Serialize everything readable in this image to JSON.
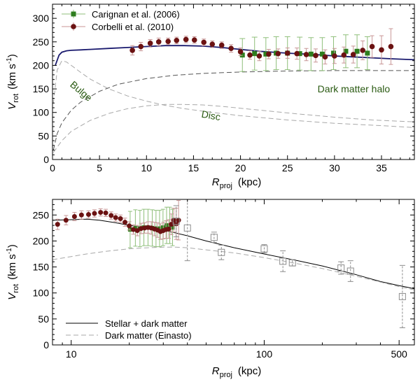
{
  "colors": {
    "total": "#1a1a6e",
    "total_bottom": "#000000",
    "components": "#a8a8a8",
    "carignan": "#2e7d1e",
    "carignan_err": "#8fbf7a",
    "corbelli": "#6b1212",
    "corbelli_err": "#c89696",
    "outer": "#8c8c8c",
    "annotation": "#2a5a12"
  },
  "chart_data": [
    {
      "type": "line",
      "id": "top",
      "xlabel": {
        "main": "R",
        "sub": "proj",
        "unit": "(kpc)"
      },
      "ylabel": {
        "main": "V",
        "sub": "rot",
        "unit_pre": "(km s",
        "unit_exp": "-1",
        "unit_post": ")"
      },
      "xlim": [
        0,
        38.5
      ],
      "ylim": [
        0,
        330
      ],
      "xticks": [
        0,
        5,
        10,
        15,
        20,
        25,
        30,
        35
      ],
      "yticks": [
        0,
        50,
        100,
        150,
        200,
        250,
        300
      ],
      "legend": [
        {
          "label": "Carignan et al. (2006)",
          "marker": "square"
        },
        {
          "label": "Corbelli et al. (2010)",
          "marker": "circle"
        }
      ],
      "annotations": [
        {
          "text": "Bulge",
          "x": 1.8,
          "y": 157,
          "rotate": 40
        },
        {
          "text": "Disc",
          "x": 15.8,
          "y": 90,
          "rotate": 10
        },
        {
          "text": "Dark matter halo",
          "x": 28.2,
          "y": 143,
          "rotate": 0
        }
      ],
      "series": [
        {
          "name": "Total model",
          "style": "solid",
          "x": [
            0.3,
            0.7,
            1,
            1.5,
            2,
            3,
            4,
            6,
            8,
            10,
            12,
            14,
            16,
            18,
            20,
            22,
            25,
            28,
            30,
            33,
            36,
            38.5
          ],
          "y": [
            200,
            222,
            228,
            231,
            232,
            233,
            234,
            236,
            238,
            240,
            242,
            242,
            241,
            238,
            234,
            230,
            226,
            223,
            220,
            217,
            214,
            212
          ]
        },
        {
          "name": "Bulge",
          "style": "dashed",
          "x": [
            0.1,
            0.5,
            1,
            1.5,
            2,
            3,
            4,
            6,
            8,
            10,
            12,
            14,
            17,
            20,
            25,
            30,
            35,
            38.5
          ],
          "y": [
            120,
            190,
            210,
            207,
            200,
            185,
            171,
            150,
            135,
            124,
            115,
            108,
            100,
            93,
            84,
            77,
            72,
            68
          ]
        },
        {
          "name": "Disc",
          "style": "dashed",
          "x": [
            0.1,
            1,
            2,
            4,
            6,
            8,
            10,
            12,
            14,
            16,
            18,
            20,
            23,
            26,
            30,
            34,
            38.5
          ],
          "y": [
            15,
            40,
            60,
            83,
            98,
            108,
            114,
            117,
            117,
            116,
            113,
            109,
            103,
            97,
            90,
            84,
            80
          ]
        },
        {
          "name": "Dark matter halo",
          "style": "dashed",
          "x": [
            0.1,
            0.5,
            1,
            2,
            3,
            5,
            7,
            10,
            13,
            16,
            20,
            25,
            30,
            35,
            38.5
          ],
          "y": [
            20,
            55,
            78,
            105,
            122,
            145,
            160,
            172,
            179,
            183,
            186,
            188,
            189,
            189,
            189
          ]
        }
      ],
      "carignan": {
        "x": [
          20.2,
          21.5,
          22.7,
          23.8,
          25,
          26.3,
          27.5,
          28.7,
          29.9,
          31.2,
          32.4,
          33.5
        ],
        "y": [
          222,
          225,
          224,
          226,
          226,
          225,
          224,
          224,
          226,
          230,
          230,
          226
        ],
        "err": [
          35,
          35,
          35,
          35,
          35,
          35,
          35,
          35,
          35,
          35,
          35,
          35
        ]
      },
      "corbelli": {
        "x": [
          8.5,
          9.4,
          10.4,
          11.3,
          12.3,
          13.2,
          14.2,
          15.1,
          16.1,
          17,
          18,
          19,
          20,
          21,
          22,
          23,
          24,
          25,
          26,
          27,
          28,
          29,
          30,
          31,
          32,
          33,
          34,
          35,
          36
        ],
        "y": [
          232,
          240,
          247,
          250,
          251,
          253,
          255,
          254,
          249,
          245,
          243,
          236,
          229,
          222,
          220,
          224,
          225,
          226,
          225,
          223,
          221,
          218,
          220,
          222,
          223,
          232,
          240,
          233,
          240
        ],
        "err": [
          10,
          9,
          8,
          8,
          7,
          7,
          7,
          7,
          7,
          7,
          7,
          8,
          8,
          9,
          10,
          10,
          10,
          11,
          12,
          13,
          14,
          15,
          16,
          17,
          18,
          20,
          23,
          30,
          38
        ]
      }
    },
    {
      "type": "line",
      "id": "bottom",
      "xscale": "log",
      "xlabel": {
        "main": "R",
        "sub": "proj",
        "unit": "(kpc)"
      },
      "ylabel": {
        "main": "V",
        "sub": "rot",
        "unit_pre": "(km s",
        "unit_exp": "-1",
        "unit_post": ")"
      },
      "xlim": [
        8,
        600
      ],
      "ylim": [
        0,
        280
      ],
      "xticks": [
        10,
        100,
        500
      ],
      "yticks": [
        0,
        50,
        100,
        150,
        200,
        250
      ],
      "legend": [
        {
          "label": "Stellar + dark matter",
          "style": "solid"
        },
        {
          "label": "Dark matter (Einasto)",
          "style": "dashed"
        }
      ],
      "series": [
        {
          "name": "Stellar + dark matter",
          "style": "solid",
          "x": [
            8,
            10,
            12,
            14,
            17,
            20,
            25,
            30,
            40,
            50,
            70,
            100,
            150,
            200,
            300,
            400,
            500,
            550,
            600
          ],
          "y": [
            240,
            241,
            242,
            240,
            235,
            230,
            225,
            221,
            210,
            200,
            187,
            175,
            162,
            152,
            135,
            122,
            114,
            111,
            108
          ]
        },
        {
          "name": "Dark matter (Einasto)",
          "style": "dashed",
          "x": [
            8,
            10,
            12,
            15,
            20,
            25,
            30,
            35,
            40,
            50,
            70,
            100,
            150,
            200,
            300,
            400,
            500,
            600
          ],
          "y": [
            164,
            170,
            175,
            180,
            185,
            187,
            188,
            188,
            187,
            183,
            177,
            168,
            156,
            147,
            132,
            121,
            112,
            106
          ]
        }
      ],
      "corbelli": {
        "x": [
          8.5,
          9.4,
          10.4,
          11.3,
          12.3,
          13.2,
          14.2,
          15.1,
          16.1,
          17,
          18,
          19,
          20,
          21,
          22,
          23,
          24,
          25,
          26,
          27,
          28,
          29,
          30,
          31,
          32,
          33,
          34,
          35,
          36
        ],
        "y": [
          232,
          240,
          247,
          250,
          251,
          253,
          255,
          254,
          249,
          245,
          243,
          236,
          229,
          222,
          220,
          224,
          225,
          226,
          225,
          223,
          221,
          218,
          220,
          222,
          223,
          232,
          240,
          233,
          240
        ],
        "err": [
          10,
          9,
          8,
          8,
          7,
          7,
          7,
          7,
          7,
          7,
          7,
          8,
          8,
          9,
          10,
          10,
          10,
          11,
          12,
          13,
          14,
          15,
          16,
          17,
          18,
          20,
          23,
          30,
          38
        ]
      },
      "carignan": {
        "x": [
          20.2,
          21.5,
          22.7,
          23.8,
          25,
          26.3,
          27.5,
          28.7,
          29.9,
          31.2,
          32.4,
          33.5
        ],
        "y": [
          222,
          225,
          224,
          226,
          226,
          225,
          224,
          224,
          226,
          230,
          230,
          226
        ],
        "err": [
          35,
          35,
          35,
          35,
          35,
          35,
          35,
          35,
          35,
          35,
          35,
          35
        ]
      },
      "outer": {
        "x": [
          35,
          40,
          55,
          60,
          100,
          125,
          140,
          250,
          280,
          520
        ],
        "y": [
          238,
          225,
          207,
          178,
          185,
          161,
          158,
          148,
          142,
          93
        ],
        "err": [
          30,
          63,
          10,
          14,
          8,
          20,
          6,
          12,
          20,
          60
        ]
      }
    }
  ]
}
